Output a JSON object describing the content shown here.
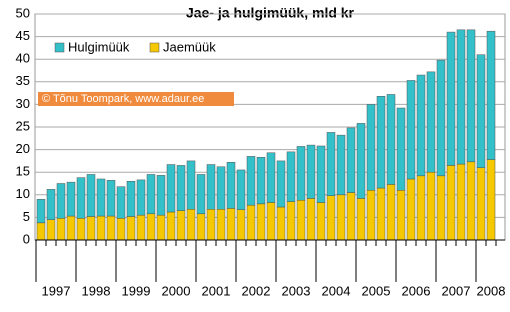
{
  "chart_data": {
    "type": "stacked_bar",
    "title": "Jae- ja hulgimüük, mld kr",
    "note": "© Tõnu Toompark, www.adaur.ee",
    "categories": [
      null,
      null,
      null,
      null,
      null,
      null,
      null,
      null,
      null,
      null,
      null,
      null,
      null,
      null,
      null,
      null,
      null,
      null,
      null,
      null,
      null,
      null,
      null,
      null,
      null,
      null,
      null,
      null,
      null,
      null,
      null,
      null,
      null,
      null,
      null,
      null,
      null,
      null,
      null,
      null,
      null,
      null,
      null,
      null,
      null,
      null
    ],
    "year_labels": [
      "1997",
      "1998",
      "1999",
      "2000",
      "2001",
      "2002",
      "2003",
      "2004",
      "2005",
      "2006",
      "2007",
      "2008"
    ],
    "series": [
      {
        "name": "Hulgimüük",
        "color": "#33c0c8",
        "values": [
          5.2,
          6.7,
          7.7,
          7.5,
          9,
          9.3,
          8.2,
          7.9,
          7,
          7.8,
          7.8,
          8.7,
          8.8,
          10.5,
          10,
          10.7,
          8.7,
          9.9,
          9.4,
          10.2,
          8.8,
          10.8,
          10.3,
          11,
          10.2,
          11,
          11.9,
          11.8,
          12.5,
          14,
          13.2,
          14.3,
          16.6,
          19,
          20.3,
          19.9,
          18.2,
          21.8,
          22.3,
          22.2,
          25.6,
          29.5,
          29.7,
          29.2,
          25,
          28.4
        ]
      },
      {
        "name": "Jaemüük",
        "color": "#f5c800",
        "values": [
          3.8,
          4.5,
          4.8,
          5.3,
          4.8,
          5.2,
          5.3,
          5.3,
          4.8,
          5.2,
          5.5,
          5.8,
          5.5,
          6.2,
          6.5,
          6.8,
          5.8,
          6.8,
          6.8,
          7,
          6.7,
          7.7,
          8,
          8.3,
          7.3,
          8.5,
          8.8,
          9.2,
          8.3,
          9.8,
          10,
          10.5,
          9.2,
          11,
          11.5,
          12.3,
          11,
          13.5,
          14.2,
          15,
          14.2,
          16.5,
          16.8,
          17.3,
          16,
          17.8
        ]
      }
    ],
    "ylim": [
      0,
      50
    ],
    "yticks": [
      0,
      5,
      10,
      15,
      20,
      25,
      30,
      35,
      40,
      45,
      50
    ],
    "grid": true,
    "legend": "top-left"
  }
}
